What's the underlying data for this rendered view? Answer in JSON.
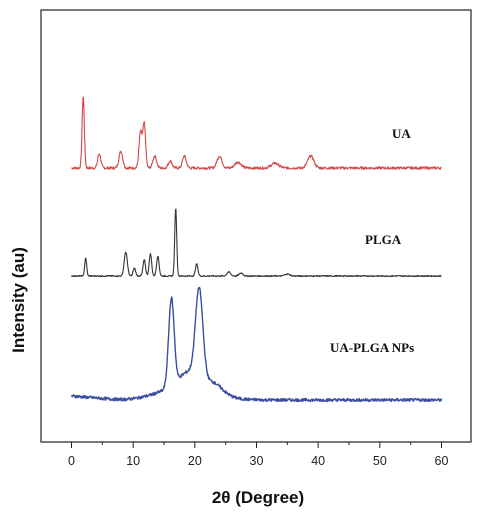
{
  "chart_data": {
    "type": "line",
    "title": "",
    "xlabel": "2θ (Degree)",
    "ylabel": "Intensity (au)",
    "xlim": [
      -5,
      65
    ],
    "xticks": [
      0,
      10,
      20,
      30,
      40,
      50,
      60
    ],
    "grid": false,
    "legend": "inline labels right of each trace",
    "series": [
      {
        "name": "UA",
        "color": "#d24a4a",
        "baseline": 0.0,
        "peaks": [
          [
            1.9,
            60,
            0.18
          ],
          [
            4.5,
            12,
            0.25
          ],
          [
            8.0,
            14,
            0.3
          ],
          [
            11.2,
            30,
            0.25
          ],
          [
            11.8,
            36,
            0.22
          ],
          [
            13.5,
            10,
            0.3
          ],
          [
            16.0,
            6,
            0.3
          ],
          [
            18.3,
            10,
            0.3
          ],
          [
            24.0,
            10,
            0.4
          ],
          [
            27.0,
            5,
            0.5
          ],
          [
            33.0,
            4,
            0.6
          ],
          [
            38.8,
            10,
            0.5
          ]
        ],
        "noise": 2.2
      },
      {
        "name": "PLGA",
        "color": "#333333",
        "baseline": 0.0,
        "peaks": [
          [
            2.3,
            18,
            0.16
          ],
          [
            8.8,
            24,
            0.25
          ],
          [
            10.2,
            8,
            0.2
          ],
          [
            11.8,
            16,
            0.2
          ],
          [
            12.8,
            22,
            0.2
          ],
          [
            14.0,
            20,
            0.2
          ],
          [
            16.9,
            68,
            0.16
          ],
          [
            20.3,
            12,
            0.2
          ],
          [
            25.5,
            4,
            0.3
          ],
          [
            27.5,
            3,
            0.3
          ],
          [
            35.0,
            2,
            0.4
          ]
        ],
        "noise": 1.2
      },
      {
        "name": "UA-PLGA NPs",
        "color": "#3a4fa3",
        "baseline": 0.0,
        "peaks": [
          [
            16.2,
            88,
            0.45
          ],
          [
            20.7,
            90,
            0.6
          ],
          [
            19.0,
            14,
            1.5
          ],
          [
            23.0,
            10,
            1.5
          ]
        ],
        "hump": [
          18.5,
          14,
          4.0
        ],
        "noise": 3.0
      }
    ]
  }
}
